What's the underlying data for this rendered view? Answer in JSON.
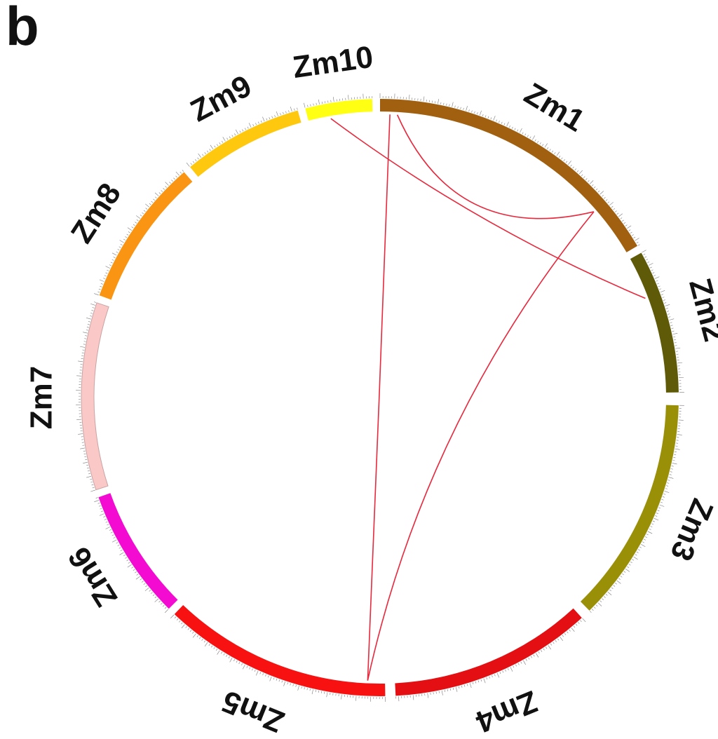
{
  "panel_label": "b",
  "chromosomes": [
    {
      "id": "zm1",
      "label": "Zm1",
      "color": "#A0600F"
    },
    {
      "id": "zm2",
      "label": "Zm2",
      "color": "#5E5A07"
    },
    {
      "id": "zm3",
      "label": "Zm3",
      "color": "#9A9008"
    },
    {
      "id": "zm4",
      "label": "Zm4",
      "color": "#E30F12"
    },
    {
      "id": "zm5",
      "label": "Zm5",
      "color": "#F71111"
    },
    {
      "id": "zm6",
      "label": "Zm6",
      "color": "#F30BD2"
    },
    {
      "id": "zm7",
      "label": "Zm7",
      "color": "#FBC8C8"
    },
    {
      "id": "zm8",
      "label": "Zm8",
      "color": "#F99512"
    },
    {
      "id": "zm9",
      "label": "Zm9",
      "color": "#FDC80E"
    },
    {
      "id": "zm10",
      "label": "Zm10",
      "color": "#FFFF14"
    }
  ],
  "link_color": "#E8283C",
  "links": [
    {
      "from": "zm10",
      "to": "zm2"
    },
    {
      "from": "zm1",
      "to": "zm1"
    },
    {
      "from": "zm1",
      "to": "zm5"
    },
    {
      "from": "zm1",
      "to": "zm5"
    }
  ]
}
